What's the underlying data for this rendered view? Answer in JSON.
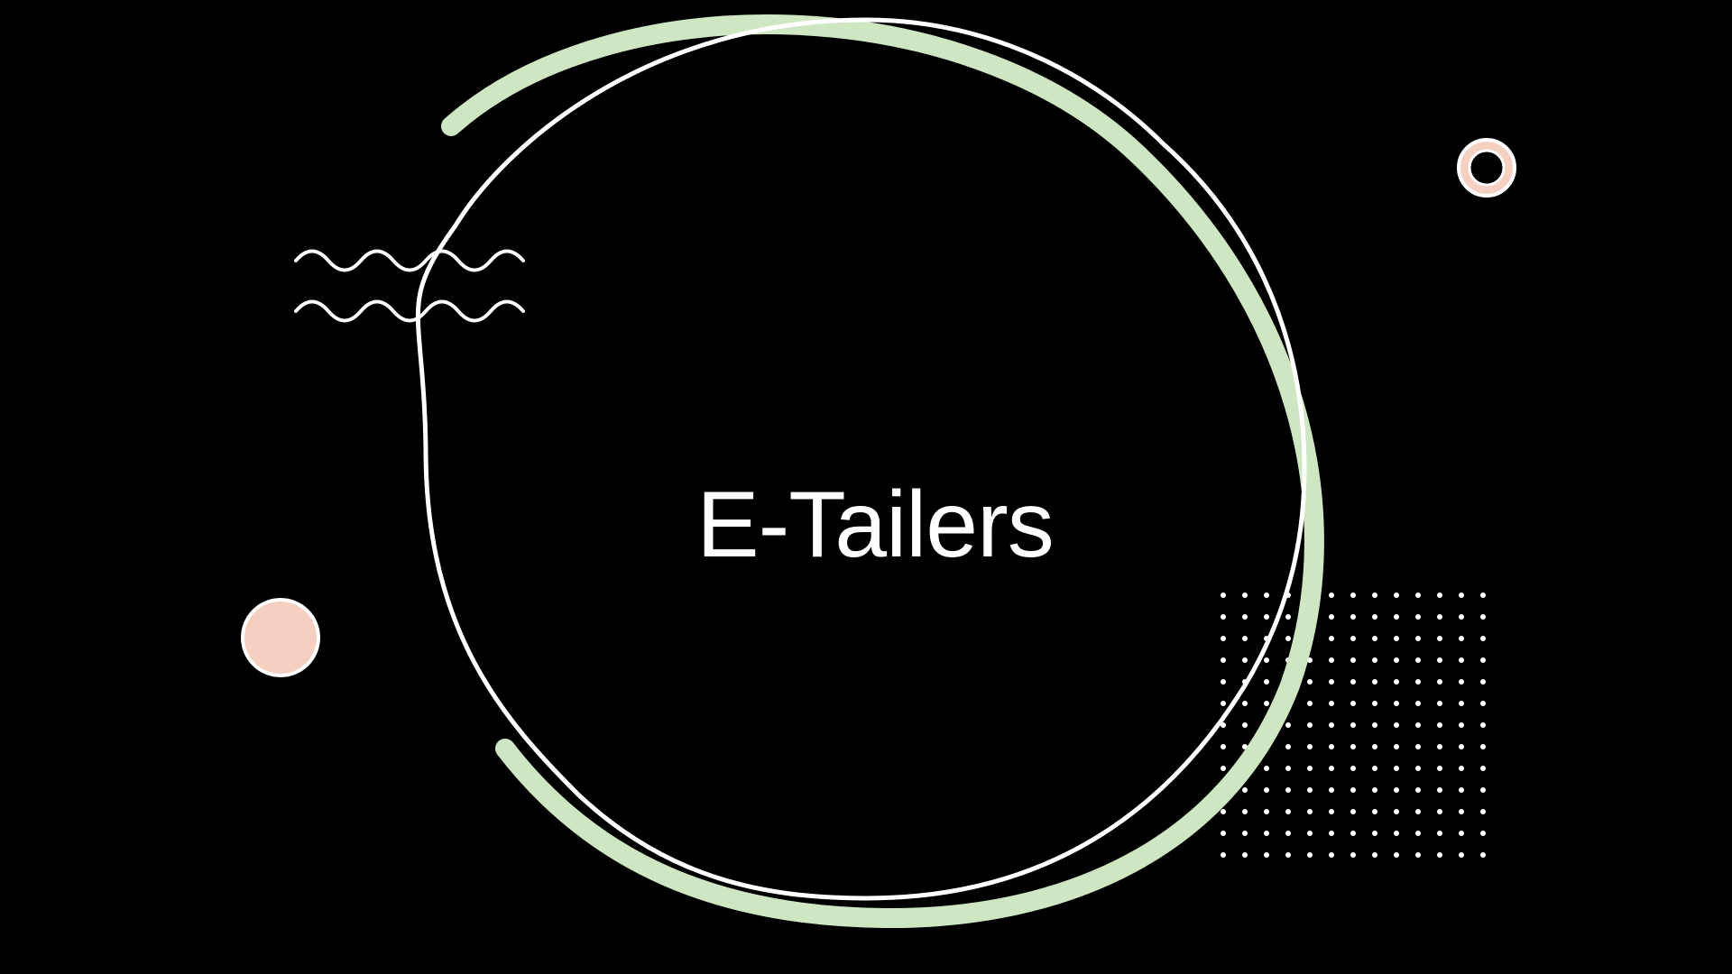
{
  "slide": {
    "title": "E-Tailers"
  },
  "colors": {
    "background": "#000000",
    "line": "#ffffff",
    "accent_green": "#cfe6c3",
    "accent_peach": "#f5d0c0"
  },
  "decorations": {
    "icons": [
      "large-ring-icon",
      "wave-lines-icon",
      "dot-grid-icon",
      "small-ring-icon",
      "peach-dot-icon"
    ]
  }
}
